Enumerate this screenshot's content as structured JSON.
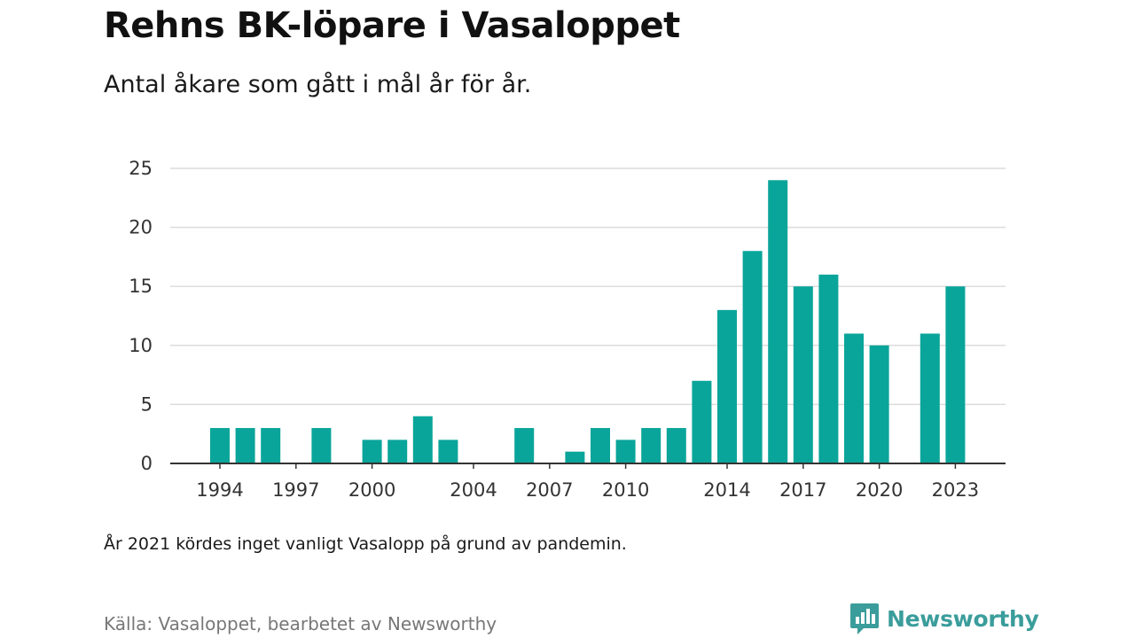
{
  "title": "Rehns BK-löpare i Vasaloppet",
  "subtitle": "Antal åkare som gått i mål år för år.",
  "note": "År 2021 kördes inget vanligt Vasalopp på grund av pandemin.",
  "source": "Källa: Vasaloppet, bearbetet av Newsworthy",
  "brand": {
    "name": "Newsworthy",
    "logo_icon": "bar-chart-speech-bubble-icon"
  },
  "colors": {
    "bar": "#0aa59a",
    "grid": "#dcdcdc",
    "axis": "#333333",
    "brand": "#3a9d9b"
  },
  "chart_data": {
    "type": "bar",
    "title": "",
    "xlabel": "",
    "ylabel": "",
    "x": [
      1994,
      1995,
      1996,
      1997,
      1998,
      1999,
      2000,
      2001,
      2002,
      2003,
      2004,
      2005,
      2006,
      2007,
      2008,
      2009,
      2010,
      2011,
      2012,
      2013,
      2014,
      2015,
      2016,
      2017,
      2018,
      2019,
      2020,
      2021,
      2022,
      2023
    ],
    "values": [
      3,
      3,
      3,
      0,
      3,
      0,
      2,
      2,
      4,
      2,
      0,
      0,
      3,
      0,
      1,
      3,
      2,
      3,
      3,
      7,
      13,
      18,
      24,
      15,
      16,
      11,
      10,
      0,
      11,
      15
    ],
    "xticks": [
      1994,
      1997,
      2000,
      2004,
      2007,
      2010,
      2014,
      2017,
      2020,
      2023
    ],
    "yticks": [
      0,
      5,
      10,
      15,
      20,
      25
    ],
    "ylim": [
      0,
      25
    ],
    "grid": true
  }
}
